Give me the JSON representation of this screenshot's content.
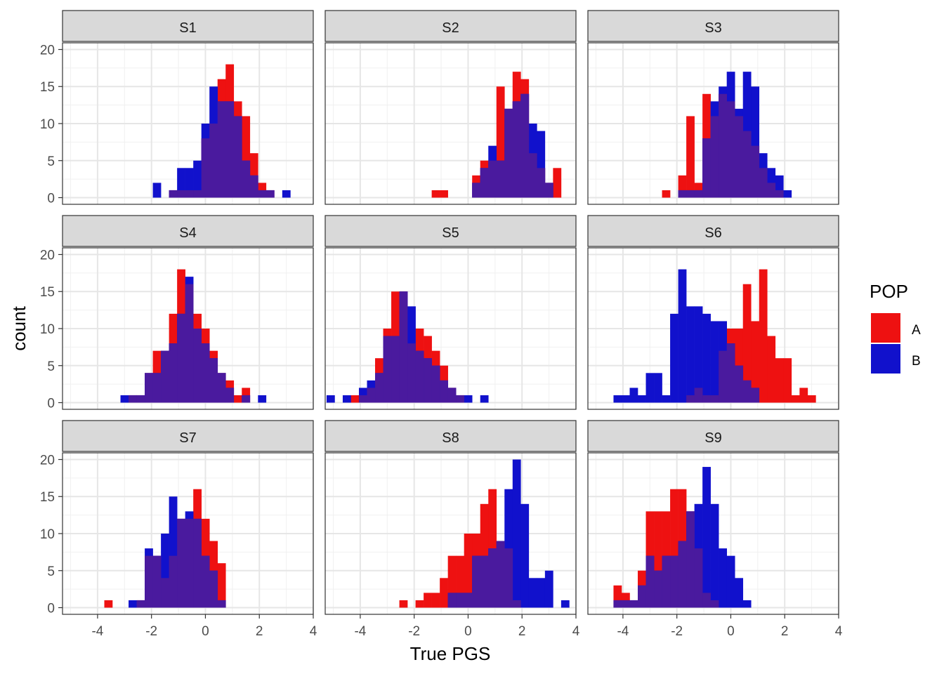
{
  "chart_data": {
    "type": "histogram",
    "facet_layout": "3x3",
    "xlabel": "True PGS",
    "ylabel": "count",
    "xlim": [
      -5.3,
      4.0
    ],
    "ylim": [
      -0.9,
      20.9
    ],
    "x_ticks": [
      "-4",
      "-2",
      "0",
      "2",
      "4"
    ],
    "y_ticks": [
      "0",
      "5",
      "10",
      "15",
      "20"
    ],
    "grid": true,
    "bin_width": 0.3,
    "legend": {
      "title": "POP",
      "position": "right",
      "entries": [
        {
          "label": "A",
          "color": "#ee1111"
        },
        {
          "label": "B",
          "color": "#1111cc"
        }
      ]
    },
    "overlap_color": "#4a1a9e",
    "panels": [
      {
        "label": "S1",
        "A": [
          [
            -1.2,
            1
          ],
          [
            -0.9,
            1
          ],
          [
            -0.6,
            1
          ],
          [
            -0.3,
            1
          ],
          [
            0.0,
            8
          ],
          [
            0.3,
            10
          ],
          [
            0.6,
            16
          ],
          [
            0.9,
            18
          ],
          [
            1.2,
            13
          ],
          [
            1.5,
            11
          ],
          [
            1.8,
            6
          ],
          [
            2.1,
            2
          ],
          [
            2.4,
            1
          ]
        ],
        "B": [
          [
            -1.8,
            2
          ],
          [
            -1.2,
            1
          ],
          [
            -0.9,
            4
          ],
          [
            -0.6,
            4
          ],
          [
            -0.3,
            5
          ],
          [
            0.0,
            10
          ],
          [
            0.3,
            15
          ],
          [
            0.6,
            13
          ],
          [
            0.9,
            13
          ],
          [
            1.2,
            11
          ],
          [
            1.5,
            5
          ],
          [
            1.8,
            3
          ],
          [
            2.1,
            1
          ],
          [
            2.4,
            1
          ],
          [
            3.0,
            1
          ]
        ]
      },
      {
        "label": "S2",
        "A": [
          [
            -1.2,
            1
          ],
          [
            -0.9,
            1
          ],
          [
            0.3,
            3
          ],
          [
            0.6,
            5
          ],
          [
            0.9,
            5
          ],
          [
            1.2,
            15
          ],
          [
            1.5,
            12
          ],
          [
            1.8,
            17
          ],
          [
            2.1,
            16
          ],
          [
            2.4,
            6
          ],
          [
            2.7,
            4
          ],
          [
            3.0,
            2
          ],
          [
            3.3,
            4
          ]
        ],
        "B": [
          [
            0.3,
            2
          ],
          [
            0.6,
            4
          ],
          [
            0.9,
            7
          ],
          [
            1.2,
            5
          ],
          [
            1.5,
            12
          ],
          [
            1.8,
            13
          ],
          [
            2.1,
            14
          ],
          [
            2.4,
            10
          ],
          [
            2.7,
            9
          ],
          [
            3.0,
            2
          ]
        ]
      },
      {
        "label": "S3",
        "A": [
          [
            -2.4,
            1
          ],
          [
            -1.8,
            3
          ],
          [
            -1.5,
            11
          ],
          [
            -1.2,
            2
          ],
          [
            -0.9,
            14
          ],
          [
            -0.6,
            11
          ],
          [
            -0.3,
            14
          ],
          [
            0.0,
            13
          ],
          [
            0.3,
            11
          ],
          [
            0.6,
            9
          ],
          [
            0.9,
            7
          ],
          [
            1.2,
            4
          ],
          [
            1.5,
            2
          ],
          [
            1.8,
            1
          ]
        ],
        "B": [
          [
            -1.8,
            1
          ],
          [
            -1.5,
            1
          ],
          [
            -1.2,
            1
          ],
          [
            -0.9,
            8
          ],
          [
            -0.6,
            13
          ],
          [
            -0.3,
            15
          ],
          [
            0.0,
            17
          ],
          [
            0.3,
            12
          ],
          [
            0.6,
            17
          ],
          [
            0.9,
            15
          ],
          [
            1.2,
            6
          ],
          [
            1.5,
            4
          ],
          [
            1.8,
            3
          ],
          [
            2.1,
            1
          ]
        ]
      },
      {
        "label": "S4",
        "A": [
          [
            -2.7,
            1
          ],
          [
            -2.4,
            1
          ],
          [
            -2.1,
            4
          ],
          [
            -1.8,
            7
          ],
          [
            -1.5,
            7
          ],
          [
            -1.2,
            12
          ],
          [
            -0.9,
            18
          ],
          [
            -0.6,
            16
          ],
          [
            -0.3,
            12
          ],
          [
            0.0,
            10
          ],
          [
            0.3,
            7
          ],
          [
            0.6,
            4
          ],
          [
            0.9,
            3
          ],
          [
            1.2,
            1
          ],
          [
            1.5,
            2
          ]
        ],
        "B": [
          [
            -3.0,
            1
          ],
          [
            -2.7,
            1
          ],
          [
            -2.4,
            1
          ],
          [
            -2.1,
            4
          ],
          [
            -1.8,
            4
          ],
          [
            -1.5,
            7
          ],
          [
            -1.2,
            8
          ],
          [
            -0.9,
            12
          ],
          [
            -0.6,
            17
          ],
          [
            -0.3,
            10
          ],
          [
            0.0,
            8
          ],
          [
            0.3,
            6
          ],
          [
            0.6,
            4
          ],
          [
            0.9,
            2
          ],
          [
            1.5,
            1
          ],
          [
            2.1,
            1
          ]
        ]
      },
      {
        "label": "S5",
        "A": [
          [
            -4.2,
            1
          ],
          [
            -3.9,
            1
          ],
          [
            -3.6,
            2
          ],
          [
            -3.3,
            6
          ],
          [
            -3.0,
            10
          ],
          [
            -2.7,
            15
          ],
          [
            -2.4,
            15
          ],
          [
            -2.1,
            8
          ],
          [
            -1.8,
            10
          ],
          [
            -1.5,
            9
          ],
          [
            -1.2,
            7
          ],
          [
            -0.9,
            5
          ],
          [
            -0.6,
            2
          ],
          [
            -0.3,
            1
          ]
        ],
        "B": [
          [
            -5.1,
            1
          ],
          [
            -4.5,
            1
          ],
          [
            -3.9,
            2
          ],
          [
            -3.6,
            3
          ],
          [
            -3.3,
            4
          ],
          [
            -3.0,
            9
          ],
          [
            -2.7,
            9
          ],
          [
            -2.4,
            15
          ],
          [
            -2.1,
            13
          ],
          [
            -1.8,
            7
          ],
          [
            -1.5,
            6
          ],
          [
            -1.2,
            5
          ],
          [
            -0.9,
            3
          ],
          [
            -0.6,
            2
          ],
          [
            -0.3,
            1
          ],
          [
            0.0,
            1
          ],
          [
            0.6,
            1
          ]
        ]
      },
      {
        "label": "S6",
        "A": [
          [
            -1.5,
            1
          ],
          [
            -1.2,
            2
          ],
          [
            -0.9,
            1
          ],
          [
            -0.6,
            1
          ],
          [
            -0.3,
            7
          ],
          [
            0.0,
            10
          ],
          [
            0.3,
            10
          ],
          [
            0.6,
            16
          ],
          [
            0.9,
            11
          ],
          [
            1.2,
            18
          ],
          [
            1.5,
            9
          ],
          [
            1.8,
            6
          ],
          [
            2.1,
            6
          ],
          [
            2.4,
            1
          ],
          [
            2.7,
            2
          ],
          [
            3.0,
            1
          ]
        ],
        "B": [
          [
            -4.2,
            1
          ],
          [
            -3.9,
            1
          ],
          [
            -3.6,
            2
          ],
          [
            -3.3,
            1
          ],
          [
            -3.0,
            4
          ],
          [
            -2.7,
            4
          ],
          [
            -2.4,
            1
          ],
          [
            -2.1,
            12
          ],
          [
            -1.8,
            18
          ],
          [
            -1.5,
            13
          ],
          [
            -1.2,
            13
          ],
          [
            -0.9,
            12
          ],
          [
            -0.6,
            11
          ],
          [
            -0.3,
            11
          ],
          [
            0.0,
            8
          ],
          [
            0.3,
            5
          ],
          [
            0.6,
            3
          ],
          [
            0.9,
            2
          ]
        ]
      },
      {
        "label": "S7",
        "A": [
          [
            -3.6,
            1
          ],
          [
            -2.4,
            1
          ],
          [
            -2.1,
            7
          ],
          [
            -1.8,
            7
          ],
          [
            -1.5,
            4
          ],
          [
            -1.2,
            7
          ],
          [
            -0.9,
            12
          ],
          [
            -0.6,
            12
          ],
          [
            -0.3,
            16
          ],
          [
            0.0,
            12
          ],
          [
            0.3,
            9
          ],
          [
            0.6,
            6
          ]
        ],
        "B": [
          [
            -2.7,
            1
          ],
          [
            -2.4,
            1
          ],
          [
            -2.1,
            8
          ],
          [
            -1.8,
            7
          ],
          [
            -1.5,
            10
          ],
          [
            -1.2,
            15
          ],
          [
            -0.9,
            12
          ],
          [
            -0.6,
            13
          ],
          [
            -0.3,
            12
          ],
          [
            0.0,
            7
          ],
          [
            0.3,
            5
          ],
          [
            0.6,
            1
          ]
        ]
      },
      {
        "label": "S8",
        "A": [
          [
            -2.4,
            1
          ],
          [
            -1.8,
            1
          ],
          [
            -1.5,
            2
          ],
          [
            -1.2,
            2
          ],
          [
            -0.9,
            4
          ],
          [
            -0.6,
            7
          ],
          [
            -0.3,
            7
          ],
          [
            0.0,
            10
          ],
          [
            0.3,
            10
          ],
          [
            0.6,
            14
          ],
          [
            0.9,
            16
          ],
          [
            1.2,
            9
          ],
          [
            1.5,
            8
          ],
          [
            1.8,
            1
          ]
        ],
        "B": [
          [
            -0.6,
            2
          ],
          [
            -0.3,
            2
          ],
          [
            0.0,
            2
          ],
          [
            0.3,
            7
          ],
          [
            0.6,
            7
          ],
          [
            0.9,
            8
          ],
          [
            1.2,
            9
          ],
          [
            1.5,
            16
          ],
          [
            1.8,
            20
          ],
          [
            2.1,
            14
          ],
          [
            2.4,
            4
          ],
          [
            2.7,
            4
          ],
          [
            3.0,
            5
          ],
          [
            3.6,
            1
          ]
        ]
      },
      {
        "label": "S9",
        "A": [
          [
            -4.2,
            3
          ],
          [
            -3.9,
            2
          ],
          [
            -3.6,
            1
          ],
          [
            -3.3,
            5
          ],
          [
            -3.0,
            13
          ],
          [
            -2.7,
            13
          ],
          [
            -2.4,
            13
          ],
          [
            -2.1,
            16
          ],
          [
            -1.8,
            16
          ],
          [
            -1.5,
            13
          ],
          [
            -1.2,
            8
          ],
          [
            -0.9,
            2
          ],
          [
            -0.6,
            1
          ]
        ],
        "B": [
          [
            -4.2,
            1
          ],
          [
            -3.9,
            1
          ],
          [
            -3.6,
            1
          ],
          [
            -3.3,
            3
          ],
          [
            -3.0,
            7
          ],
          [
            -2.7,
            5
          ],
          [
            -2.4,
            7
          ],
          [
            -2.1,
            7
          ],
          [
            -1.8,
            9
          ],
          [
            -1.5,
            13
          ],
          [
            -1.2,
            14
          ],
          [
            -0.9,
            19
          ],
          [
            -0.6,
            14
          ],
          [
            -0.3,
            8
          ],
          [
            0.0,
            7
          ],
          [
            0.3,
            4
          ],
          [
            0.6,
            1
          ]
        ]
      }
    ]
  }
}
